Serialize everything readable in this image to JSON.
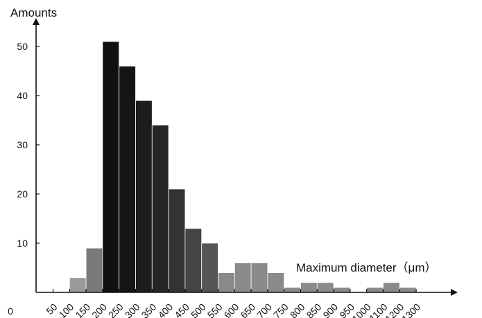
{
  "chart_data": {
    "type": "bar",
    "ylabel": "Amounts",
    "xlabel": "Maximum diameter（μm）",
    "yticks": [
      0,
      10,
      20,
      30,
      40,
      50
    ],
    "xticks": [
      "50",
      "100",
      "150",
      "200",
      "250",
      "300",
      "350",
      "400",
      "450",
      "500",
      "550",
      "600",
      "650",
      "700",
      "750",
      "800",
      "850",
      "900",
      "950",
      "1000",
      "1100",
      "1200",
      "1300"
    ],
    "ylim": [
      0,
      54
    ],
    "grid": false,
    "legend": "none",
    "bars": [
      {
        "value": 0,
        "color": "#ffffff"
      },
      {
        "value": 3,
        "color": "#9a9a9a"
      },
      {
        "value": 9,
        "color": "#7a7a7a"
      },
      {
        "value": 51,
        "color": "#111111"
      },
      {
        "value": 46,
        "color": "#151515"
      },
      {
        "value": 39,
        "color": "#1c1c1c"
      },
      {
        "value": 34,
        "color": "#262626"
      },
      {
        "value": 21,
        "color": "#333333"
      },
      {
        "value": 13,
        "color": "#444444"
      },
      {
        "value": 10,
        "color": "#555555"
      },
      {
        "value": 4,
        "color": "#8a8a8a"
      },
      {
        "value": 6,
        "color": "#8a8a8a"
      },
      {
        "value": 6,
        "color": "#8a8a8a"
      },
      {
        "value": 4,
        "color": "#8a8a8a"
      },
      {
        "value": 1,
        "color": "#8a8a8a"
      },
      {
        "value": 2,
        "color": "#8a8a8a"
      },
      {
        "value": 2,
        "color": "#8a8a8a"
      },
      {
        "value": 1,
        "color": "#8a8a8a"
      },
      {
        "value": 0,
        "color": "#ffffff"
      },
      {
        "value": 1,
        "color": "#8a8a8a"
      },
      {
        "value": 2,
        "color": "#8a8a8a"
      },
      {
        "value": 1,
        "color": "#8a8a8a"
      }
    ]
  }
}
